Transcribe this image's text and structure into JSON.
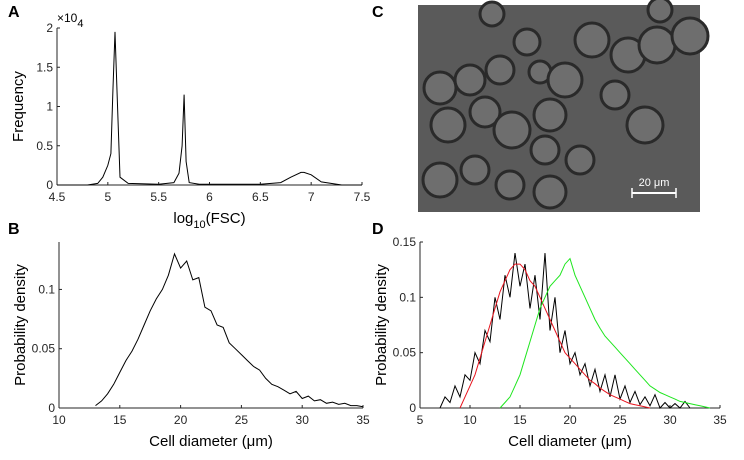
{
  "chart_data": [
    {
      "type": "line",
      "panel": "A",
      "ylabel": "Frequency",
      "xlabel": [
        "log",
        "10",
        "(FSC)"
      ],
      "y_multiplier": [
        "×10",
        "4"
      ],
      "x": [
        4.5,
        4.8,
        4.9,
        4.95,
        5.0,
        5.03,
        5.05,
        5.07,
        5.09,
        5.12,
        5.2,
        5.5,
        5.65,
        5.7,
        5.73,
        5.75,
        5.77,
        5.8,
        5.9,
        6.5,
        6.7,
        6.8,
        6.9,
        6.93,
        7.0,
        7.1,
        7.3,
        7.5
      ],
      "series": [
        {
          "color": "#000000",
          "values": [
            0,
            0,
            0.02,
            0.1,
            0.25,
            0.4,
            1.2,
            1.95,
            1.2,
            0.1,
            0.02,
            0.01,
            0.03,
            0.15,
            0.5,
            1.15,
            0.3,
            0.03,
            0.01,
            0.01,
            0.03,
            0.1,
            0.16,
            0.16,
            0.13,
            0.04,
            0,
            0
          ]
        }
      ],
      "xlim": [
        4.5,
        7.5
      ],
      "xticks": [
        4.5,
        5,
        5.5,
        6,
        6.5,
        7,
        7.5
      ],
      "ylim": [
        0,
        2
      ],
      "yticks": [
        0,
        0.5,
        1,
        1.5,
        2
      ]
    },
    {
      "type": "line",
      "panel": "B",
      "ylabel": "Probability density",
      "xlabel": "Cell diameter (μm)",
      "x": [
        13,
        13.5,
        14,
        14.5,
        15,
        15.5,
        16,
        16.5,
        17,
        17.5,
        18,
        18.5,
        19,
        19.5,
        20,
        20.5,
        21,
        21.5,
        22,
        22.5,
        23,
        23.5,
        24,
        24.5,
        25,
        25.5,
        26,
        26.5,
        27,
        27.5,
        28,
        28.5,
        29,
        29.5,
        30,
        30.5,
        31,
        31.5,
        32,
        32.5,
        33,
        33.5,
        34,
        34.5,
        35
      ],
      "series": [
        {
          "color": "#000000",
          "values": [
            0.002,
            0.006,
            0.012,
            0.02,
            0.03,
            0.04,
            0.048,
            0.058,
            0.07,
            0.082,
            0.092,
            0.1,
            0.112,
            0.13,
            0.118,
            0.124,
            0.108,
            0.11,
            0.085,
            0.082,
            0.07,
            0.068,
            0.055,
            0.05,
            0.045,
            0.04,
            0.035,
            0.032,
            0.025,
            0.02,
            0.018,
            0.015,
            0.012,
            0.014,
            0.008,
            0.01,
            0.006,
            0.007,
            0.004,
            0.005,
            0.003,
            0.004,
            0.002,
            0.002,
            0.001
          ]
        }
      ],
      "xlim": [
        10,
        35
      ],
      "xticks": [
        10,
        15,
        20,
        25,
        30,
        35
      ],
      "ylim": [
        0,
        0.14
      ],
      "yticks": [
        0,
        0.05,
        0.1
      ]
    },
    {
      "type": "line",
      "panel": "D",
      "ylabel": "Probability density",
      "xlabel": "Cell diameter (μm)",
      "x": [
        5,
        5.5,
        6,
        6.5,
        7,
        7.5,
        8,
        8.5,
        9,
        9.5,
        10,
        10.5,
        11,
        11.5,
        12,
        12.5,
        13,
        13.5,
        14,
        14.5,
        15,
        15.5,
        16,
        16.5,
        17,
        17.5,
        18,
        18.5,
        19,
        19.5,
        20,
        20.5,
        21,
        21.5,
        22,
        22.5,
        23,
        23.5,
        24,
        24.5,
        25,
        25.5,
        26,
        26.5,
        27,
        27.5,
        28,
        28.5,
        29,
        29.5,
        30,
        30.5,
        31,
        31.5,
        32,
        32.5,
        33,
        33.5,
        34,
        34.5,
        35
      ],
      "series": [
        {
          "color": "#000000",
          "values": [
            null,
            null,
            null,
            null,
            0,
            0.01,
            0.005,
            0.02,
            0.01,
            0.03,
            0.025,
            0.05,
            0.04,
            0.07,
            0.06,
            0.1,
            0.08,
            0.12,
            0.1,
            0.14,
            0.11,
            0.13,
            0.09,
            0.12,
            0.08,
            0.14,
            0.07,
            0.1,
            0.05,
            0.07,
            0.04,
            0.05,
            0.03,
            0.04,
            0.02,
            0.035,
            0.015,
            0.03,
            0.01,
            0.03,
            0.008,
            0.02,
            0.005,
            0.015,
            0.003,
            0.01,
            0.002,
            0.012,
            0,
            0.005,
            0,
            0.004,
            0,
            0.006,
            0,
            null,
            null,
            null,
            null,
            null,
            null
          ]
        },
        {
          "color": "#e8141e",
          "values": [
            null,
            null,
            null,
            null,
            null,
            null,
            null,
            null,
            0,
            0.01,
            0.02,
            0.03,
            0.045,
            0.06,
            0.075,
            0.09,
            0.105,
            0.115,
            0.125,
            0.13,
            0.13,
            0.125,
            0.115,
            0.11,
            0.1,
            0.09,
            0.08,
            0.07,
            0.06,
            0.05,
            0.045,
            0.04,
            0.035,
            0.03,
            0.025,
            0.022,
            0.018,
            0.015,
            0.012,
            0.01,
            0.008,
            0.006,
            0.004,
            0.003,
            0.002,
            0.001,
            0,
            null,
            null,
            null,
            null,
            null,
            null,
            null,
            null,
            null,
            null,
            null,
            null,
            null,
            null
          ]
        },
        {
          "color": "#1ee61e",
          "values": [
            null,
            null,
            null,
            null,
            null,
            null,
            null,
            null,
            null,
            null,
            null,
            null,
            null,
            null,
            null,
            null,
            0,
            0.005,
            0.01,
            0.02,
            0.03,
            0.045,
            0.06,
            0.075,
            0.09,
            0.1,
            0.11,
            0.115,
            0.12,
            0.13,
            0.135,
            0.12,
            0.11,
            0.1,
            0.09,
            0.08,
            0.072,
            0.065,
            0.06,
            0.055,
            0.05,
            0.045,
            0.04,
            0.035,
            0.03,
            0.025,
            0.02,
            0.017,
            0.014,
            0.012,
            0.01,
            0.008,
            0.006,
            0.005,
            0.004,
            0.003,
            0.002,
            0.001,
            0,
            null,
            null
          ]
        }
      ],
      "xlim": [
        5,
        35
      ],
      "xticks": [
        5,
        10,
        15,
        20,
        25,
        30,
        35
      ],
      "ylim": [
        0,
        0.15
      ],
      "yticks": [
        0,
        0.05,
        0.1,
        0.15
      ]
    }
  ],
  "image": {
    "panel": "C",
    "scale_bar": "20 μm"
  }
}
